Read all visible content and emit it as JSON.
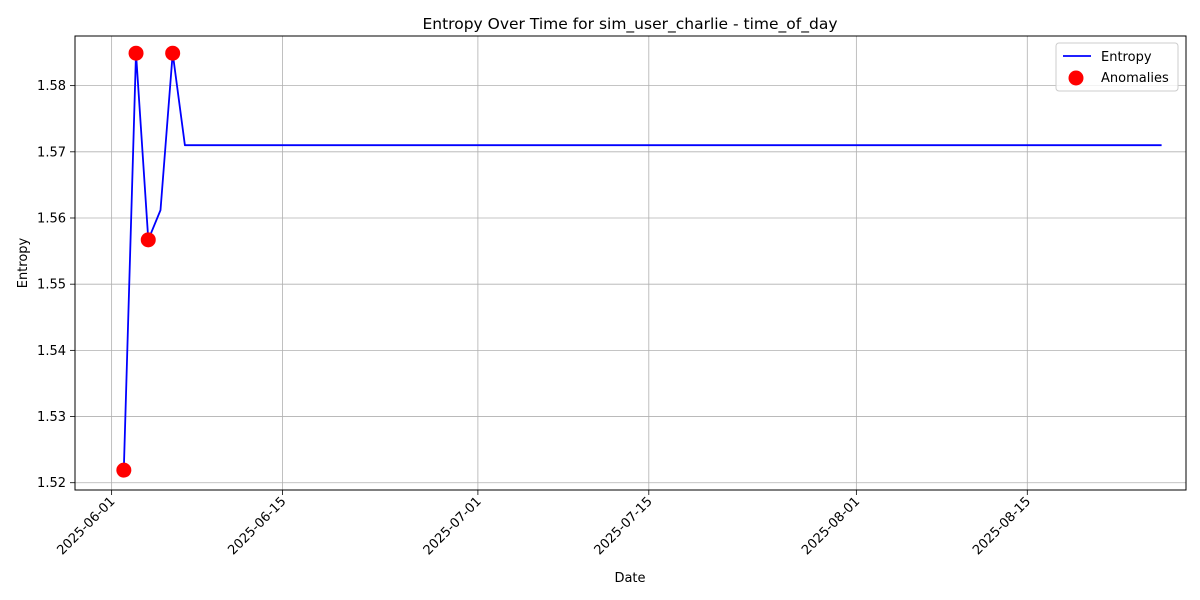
{
  "chart_data": {
    "type": "line",
    "title": "Entropy Over Time for sim_user_charlie - time_of_day",
    "xlabel": "Date",
    "ylabel": "Entropy",
    "x_ticks": [
      "2025-06-01",
      "2025-06-15",
      "2025-07-01",
      "2025-07-15",
      "2025-08-01",
      "2025-08-15"
    ],
    "y_ticks": [
      "1.52",
      "1.53",
      "1.54",
      "1.55",
      "1.56",
      "1.57",
      "1.58"
    ],
    "xlim": [
      "2025-05-29",
      "2025-08-28"
    ],
    "ylim": [
      1.5189,
      1.5875
    ],
    "grid": true,
    "legend_position": "top-right",
    "series": [
      {
        "name": "Entropy",
        "kind": "line",
        "color": "#0000ff",
        "points": [
          {
            "x": "2025-06-02",
            "y": 1.5219
          },
          {
            "x": "2025-06-03",
            "y": 1.5849
          },
          {
            "x": "2025-06-04",
            "y": 1.5567
          },
          {
            "x": "2025-06-05",
            "y": 1.5612
          },
          {
            "x": "2025-06-06",
            "y": 1.5849
          },
          {
            "x": "2025-06-07",
            "y": 1.571
          },
          {
            "x": "2025-06-08",
            "y": 1.571
          },
          {
            "x": "2025-06-15",
            "y": 1.571
          },
          {
            "x": "2025-07-01",
            "y": 1.571
          },
          {
            "x": "2025-07-15",
            "y": 1.571
          },
          {
            "x": "2025-08-01",
            "y": 1.571
          },
          {
            "x": "2025-08-15",
            "y": 1.571
          },
          {
            "x": "2025-08-26",
            "y": 1.571
          }
        ]
      },
      {
        "name": "Anomalies",
        "kind": "scatter",
        "color": "#ff0000",
        "points": [
          {
            "x": "2025-06-02",
            "y": 1.5219
          },
          {
            "x": "2025-06-03",
            "y": 1.5849
          },
          {
            "x": "2025-06-04",
            "y": 1.5567
          },
          {
            "x": "2025-06-06",
            "y": 1.5849
          }
        ]
      }
    ]
  }
}
